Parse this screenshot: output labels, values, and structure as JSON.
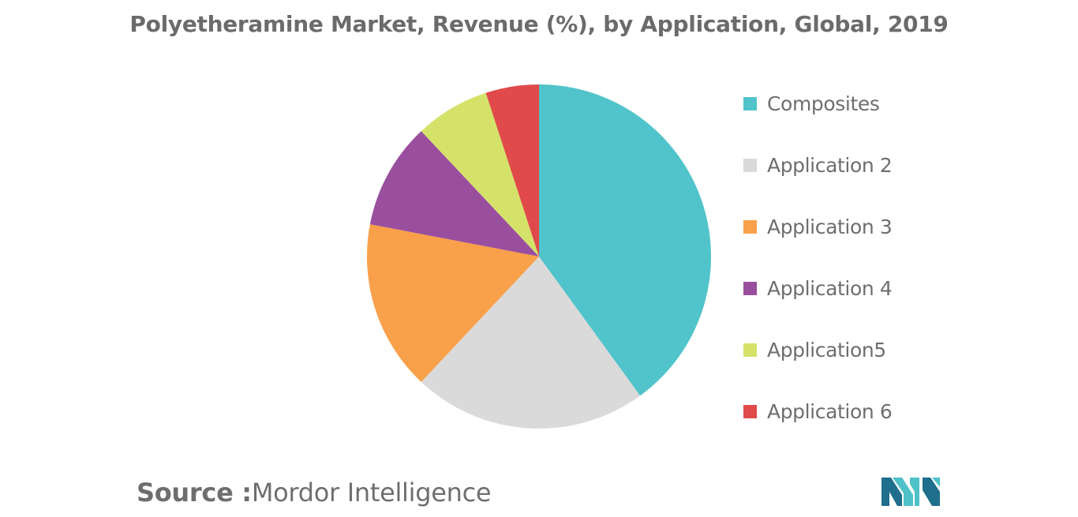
{
  "chart_data": {
    "type": "pie",
    "title": "Polyetheramine Market, Revenue (%), by Application, Global, 2019",
    "start_angle_deg": 0,
    "direction": "clockwise",
    "slices": [
      {
        "label": "Composites",
        "value": 40,
        "color": "#50c4ca"
      },
      {
        "label": "Application 2",
        "value": 22,
        "color": "#dadada"
      },
      {
        "label": "Application 3",
        "value": 16,
        "color": "#f9a04a"
      },
      {
        "label": "Application 4",
        "value": 10,
        "color": "#9a4f9e"
      },
      {
        "label": "Application5",
        "value": 7,
        "color": "#d5e26a"
      },
      {
        "label": "Application 6",
        "value": 5,
        "color": "#e04a4a"
      }
    ],
    "legend_position": "right"
  },
  "source": {
    "label": "Source :",
    "text": "Mordor Intelligence"
  },
  "logo": {
    "icon": "mordor-intelligence-logo-icon",
    "colors": [
      "#1f6e8c",
      "#4fc1c9"
    ]
  }
}
